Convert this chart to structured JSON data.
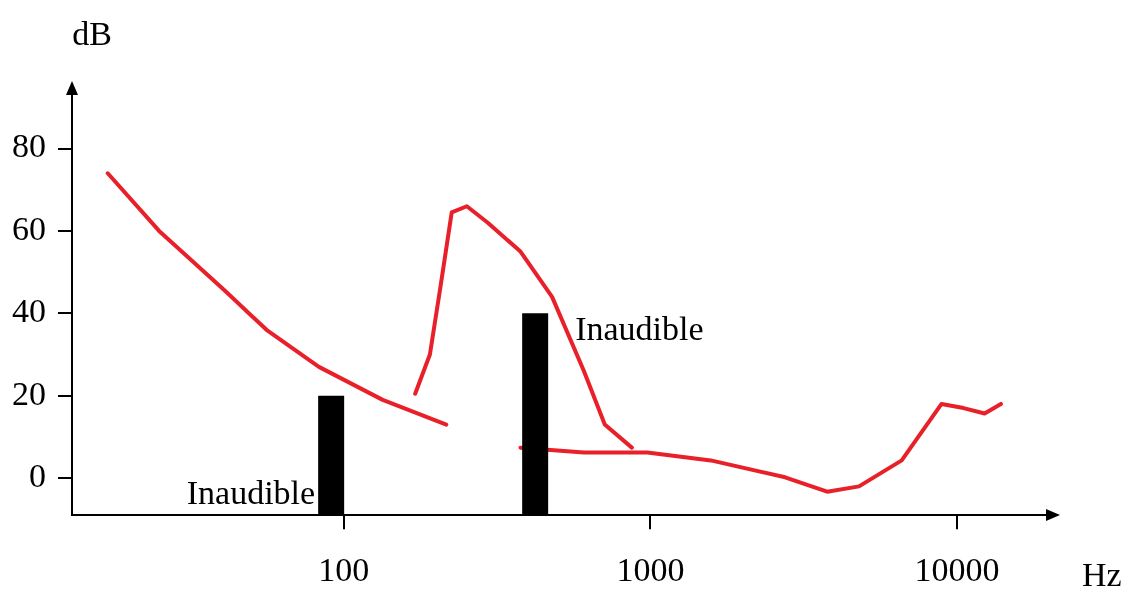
{
  "chart_data": {
    "type": "line",
    "xlabel": "Hz",
    "ylabel": "dB",
    "log": "x",
    "xlim": [
      13,
      19500
    ],
    "xticks": [
      100,
      1000,
      10000
    ],
    "ylim": [
      -9,
      93
    ],
    "yticks": [
      0,
      20,
      40,
      60,
      80
    ],
    "grid": false,
    "legend": false,
    "marker": "none",
    "line_style": "solid",
    "series": [
      {
        "type": "line",
        "color": "#e8202a",
        "x": [
          17,
          25,
          41,
          56,
          83,
          134,
          216,
          250,
          377,
          607,
          977,
          1574,
          2750,
          3770,
          4790,
          6600,
          8900,
          10500,
          12300,
          13900
        ],
        "values": [
          74,
          60,
          45.5,
          36,
          27,
          19,
          13,
          null,
          7.4,
          6.2,
          6.2,
          4.3,
          0.2,
          -3.3,
          -2,
          4.3,
          18,
          17,
          15.7,
          18
        ]
      },
      {
        "type": "line",
        "color": "#e8202a",
        "x": [
          171,
          191,
          207,
          225,
          252,
          295,
          377,
          478,
          607,
          710,
          870
        ],
        "values": [
          20.5,
          30,
          46.7,
          64.5,
          66,
          62,
          55,
          44,
          26,
          13,
          7.4
        ]
      },
      {
        "type": "bar",
        "color": "#000000",
        "x": [
          91,
          421
        ],
        "base": [
          -9,
          -9
        ],
        "values": [
          29,
          49
        ]
      }
    ],
    "annotations": [
      "Inaudible",
      "Inaudible"
    ]
  }
}
